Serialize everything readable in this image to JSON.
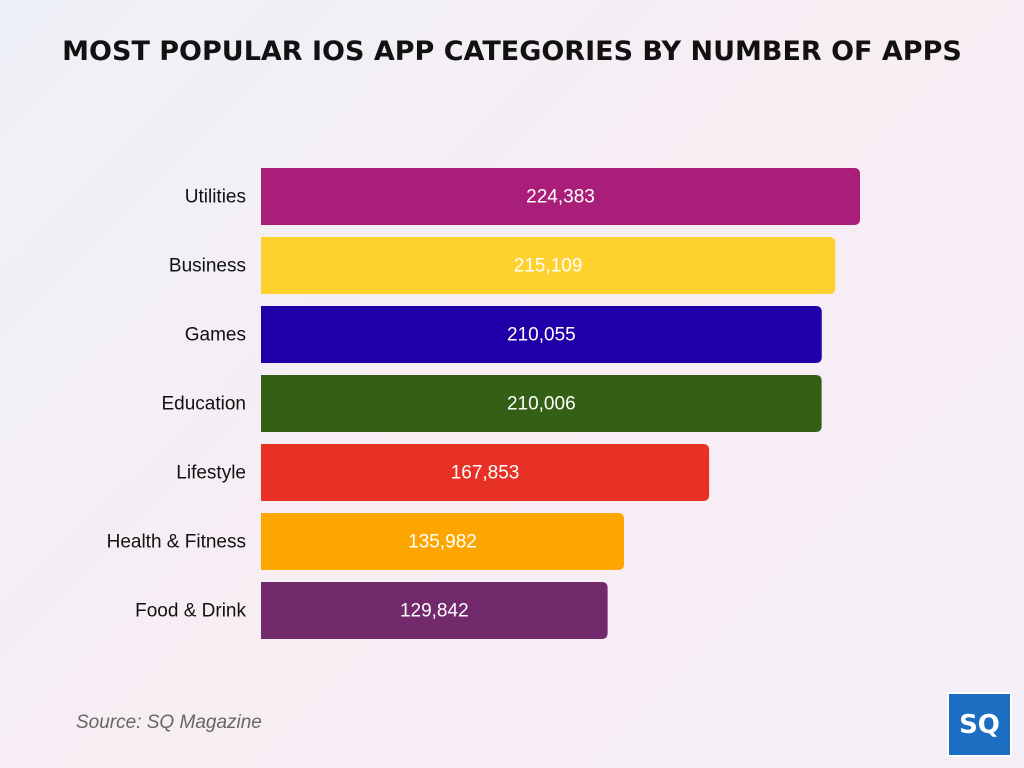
{
  "chart_data": {
    "type": "bar",
    "orientation": "horizontal",
    "title": "MOST POPULAR IOS APP CATEGORIES BY NUMBER OF APPS",
    "categories": [
      "Utilities",
      "Business",
      "Games",
      "Education",
      "Lifestyle",
      "Health & Fitness",
      "Food & Drink"
    ],
    "values": [
      224383,
      215109,
      210055,
      210006,
      167853,
      135982,
      129842
    ],
    "value_labels": [
      "224,383",
      "215,109",
      "210,055",
      "210,006",
      "167,853",
      "135,982",
      "129,842"
    ],
    "colors": [
      "#a91e78",
      "#ffd12f",
      "#1f00a8",
      "#336014",
      "#e73124",
      "#fda600",
      "#722a6d"
    ],
    "source": "Source: SQ Magazine",
    "logo": "SQ"
  }
}
